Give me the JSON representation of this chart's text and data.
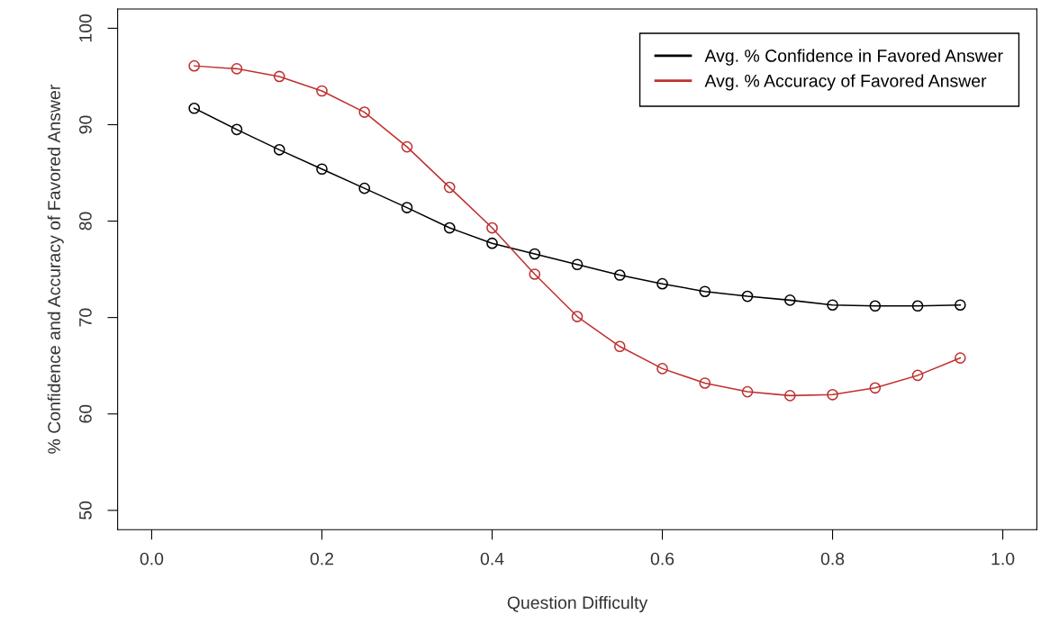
{
  "chart_data": {
    "type": "line",
    "xlabel": "Question Difficulty",
    "ylabel": "% Confidence and Accuracy of Favored Answer",
    "x": [
      0.05,
      0.1,
      0.15,
      0.2,
      0.25,
      0.3,
      0.35,
      0.4,
      0.45,
      0.5,
      0.55,
      0.6,
      0.65,
      0.7,
      0.75,
      0.8,
      0.85,
      0.9,
      0.95
    ],
    "series": [
      {
        "name": "Avg. % Confidence in Favored Answer",
        "color": "#000000",
        "values": [
          91.7,
          89.5,
          87.4,
          85.4,
          83.4,
          81.4,
          79.3,
          77.7,
          76.6,
          75.5,
          74.4,
          73.5,
          72.7,
          72.2,
          71.8,
          71.3,
          71.2,
          71.2,
          71.3
        ]
      },
      {
        "name": "Avg. % Accuracy of Favored Answer",
        "color": "#c03030",
        "values": [
          96.1,
          95.8,
          95.0,
          93.5,
          91.3,
          87.7,
          83.5,
          79.3,
          74.5,
          70.1,
          67.0,
          64.7,
          63.2,
          62.3,
          61.9,
          62.0,
          62.7,
          64.0,
          65.8
        ]
      }
    ],
    "xlim": [
      -0.04,
      1.04
    ],
    "ylim": [
      48,
      102
    ],
    "xticks": [
      {
        "value": 0,
        "label": "0.0"
      },
      0.2,
      0.4,
      0.6,
      0.8,
      {
        "value": 1,
        "label": "1.0"
      }
    ],
    "yticks": [
      50,
      60,
      70,
      80,
      90,
      100
    ],
    "marker": "circle",
    "line_style": "solid",
    "grid": false,
    "legend": "top right"
  }
}
